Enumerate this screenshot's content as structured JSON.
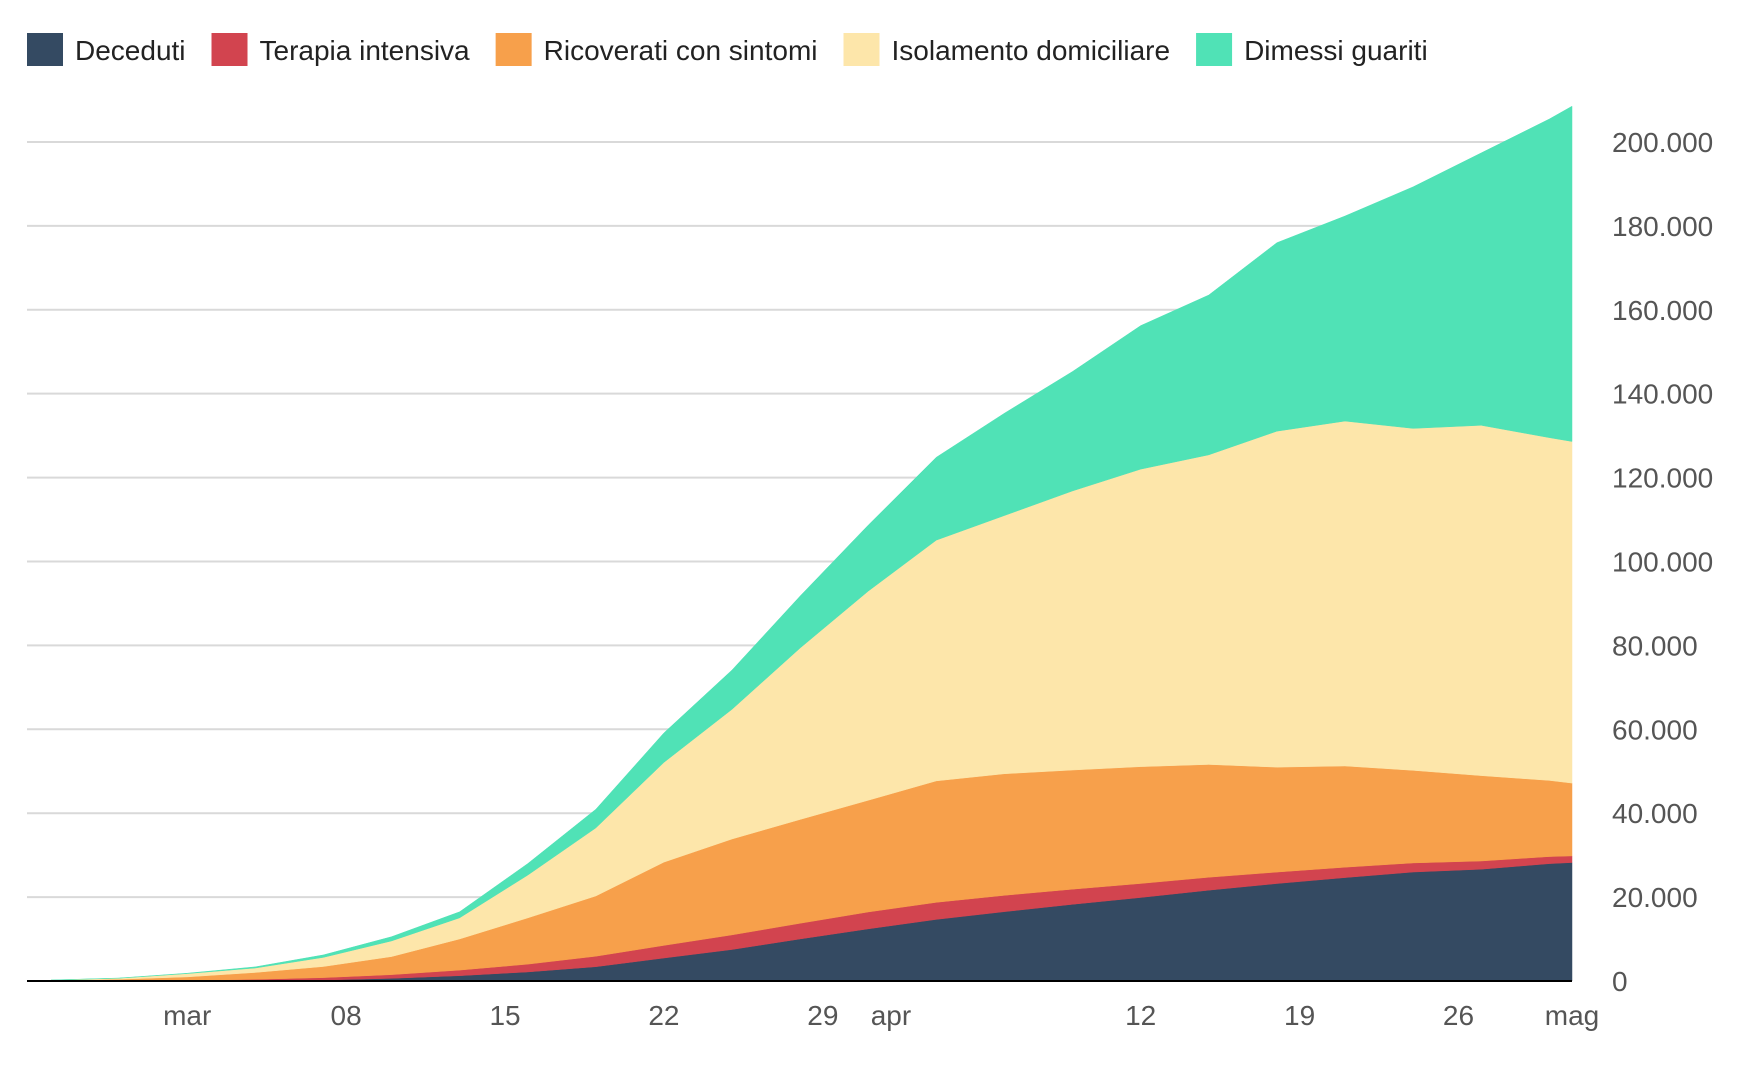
{
  "chart_data": {
    "type": "area",
    "stacked": true,
    "title": "",
    "xlabel": "",
    "ylabel": "",
    "ylim": [
      0,
      210000
    ],
    "yticks": [
      0,
      20000,
      40000,
      60000,
      80000,
      100000,
      120000,
      140000,
      160000,
      180000,
      200000
    ],
    "ytick_labels": [
      "0",
      "20.000",
      "40.000",
      "60.000",
      "80.000",
      "100.000",
      "120.000",
      "140.000",
      "160.000",
      "180.000",
      "200.000"
    ],
    "x_axis_position": "right",
    "grid": true,
    "legend": "top-left",
    "x": [
      "2020-02-24",
      "2020-02-27",
      "2020-03-01",
      "2020-03-04",
      "2020-03-07",
      "2020-03-10",
      "2020-03-13",
      "2020-03-16",
      "2020-03-19",
      "2020-03-22",
      "2020-03-25",
      "2020-03-28",
      "2020-03-31",
      "2020-04-03",
      "2020-04-06",
      "2020-04-09",
      "2020-04-12",
      "2020-04-15",
      "2020-04-18",
      "2020-04-21",
      "2020-04-24",
      "2020-04-27",
      "2020-04-30",
      "2020-05-01"
    ],
    "xticks": [
      {
        "date": "2020-03-01",
        "label": "mar"
      },
      {
        "date": "2020-03-08",
        "label": "08"
      },
      {
        "date": "2020-03-15",
        "label": "15"
      },
      {
        "date": "2020-03-22",
        "label": "22"
      },
      {
        "date": "2020-03-29",
        "label": "29"
      },
      {
        "date": "2020-04-01",
        "label": "apr"
      },
      {
        "date": "2020-04-12",
        "label": "12"
      },
      {
        "date": "2020-04-19",
        "label": "19"
      },
      {
        "date": "2020-04-26",
        "label": "26"
      },
      {
        "date": "2020-05-01",
        "label": "mag"
      }
    ],
    "series": [
      {
        "name": "Deceduti",
        "color": "#344a62",
        "values": [
          7,
          17,
          34,
          107,
          233,
          631,
          1266,
          2158,
          3405,
          5476,
          7503,
          10023,
          12428,
          14681,
          16523,
          18279,
          19899,
          21645,
          23227,
          24648,
          25969,
          26644,
          27967,
          28236
        ]
      },
      {
        "name": "Terapia intensiva",
        "color": "#d2444f",
        "values": [
          27,
          64,
          140,
          295,
          567,
          877,
          1328,
          1851,
          2498,
          3009,
          3489,
          3732,
          4023,
          4068,
          3898,
          3605,
          3343,
          3079,
          2733,
          2471,
          2173,
          1956,
          1694,
          1578
        ]
      },
      {
        "name": "Ricoverati con sintomi",
        "color": "#f7a04b",
        "values": [
          101,
          345,
          798,
          1628,
          2651,
          4316,
          7426,
          11025,
          14363,
          19846,
          22855,
          24753,
          26626,
          28949,
          28976,
          28399,
          27847,
          26893,
          25007,
          24134,
          22068,
          20353,
          18149,
          17357
        ]
      },
      {
        "name": "Isolamento domiciliare",
        "color": "#fde6aa",
        "values": [
          94,
          238,
          798,
          1065,
          2180,
          3724,
          5036,
          10197,
          16220,
          23783,
          30920,
          40871,
          49858,
          57386,
          61557,
          66534,
          70914,
          73802,
          80089,
          82212,
          81510,
          83504,
          81708,
          81436
        ]
      },
      {
        "name": "Dimessi guariti",
        "color": "#50e2b6",
        "values": [
          1,
          45,
          83,
          276,
          589,
          1004,
          1439,
          2749,
          4440,
          7024,
          9362,
          12384,
          15729,
          19758,
          24392,
          28470,
          34211,
          38092,
          44927,
          48877,
          57576,
          64928,
          75945,
          79914
        ]
      }
    ]
  }
}
